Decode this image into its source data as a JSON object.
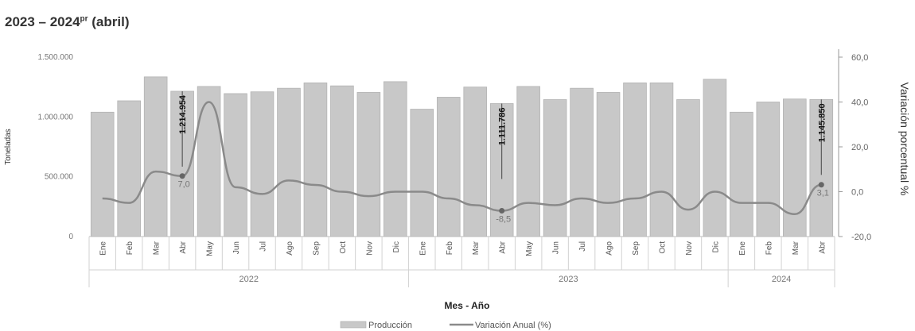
{
  "header": {
    "subtitle_years": "2023 – 2024",
    "subtitle_sup": "pr",
    "subtitle_tail": " (abril)"
  },
  "chart_data": {
    "type": "bar",
    "xlabel": "Mes - Año",
    "ylabel": "Toneladas",
    "y2label": "Variación porcentual %",
    "ylim": [
      0,
      1500000
    ],
    "y2lim": [
      -20,
      60
    ],
    "yticks": [
      "1.500.000",
      "1.000.000",
      "500.000",
      "0"
    ],
    "y2ticks": [
      "60,0",
      "40,0",
      "20,0",
      "0,0",
      "-20,0"
    ],
    "categories": [
      "Ene",
      "Feb",
      "Mar",
      "Abr",
      "May",
      "Jun",
      "Jul",
      "Ago",
      "Sep",
      "Oct",
      "Nov",
      "Dic",
      "Ene",
      "Feb",
      "Mar",
      "Abr",
      "May",
      "Jun",
      "Jul",
      "Ago",
      "Sep",
      "Oct",
      "Nov",
      "Dic",
      "Ene",
      "Feb",
      "Mar",
      "Abr"
    ],
    "years": [
      {
        "label": "2022",
        "count": 12
      },
      {
        "label": "2023",
        "count": 12
      },
      {
        "label": "2024",
        "count": 4
      }
    ],
    "series": [
      {
        "name": "Producción",
        "axis": "left",
        "color": "#c8c8c8",
        "values": [
          1040000,
          1135000,
          1335000,
          1214954,
          1255000,
          1195000,
          1210000,
          1240000,
          1285000,
          1260000,
          1205000,
          1295000,
          1065000,
          1165000,
          1250000,
          1111786,
          1255000,
          1145000,
          1240000,
          1205000,
          1285000,
          1285000,
          1145000,
          1315000,
          1040000,
          1125000,
          1150000,
          1145850
        ]
      },
      {
        "name": "Variación Anual (%)",
        "axis": "right",
        "color": "#8a8a8a",
        "values": [
          -3,
          -5,
          9,
          7,
          40,
          2,
          -1,
          5,
          3,
          0,
          -2,
          0,
          0,
          -3,
          -6,
          -8.5,
          -5,
          -6,
          -3,
          -5,
          -3,
          0,
          -8,
          0,
          -5,
          -5,
          -10,
          3.1
        ]
      }
    ],
    "bar_labels": [
      {
        "index": 3,
        "text": "1.214.954"
      },
      {
        "index": 15,
        "text": "1.111.786"
      },
      {
        "index": 27,
        "text": "1.145.850"
      }
    ],
    "line_labels": [
      {
        "index": 3,
        "text": "7,0"
      },
      {
        "index": 15,
        "text": "-8,5"
      },
      {
        "index": 27,
        "text": "3,1"
      }
    ],
    "grid": false,
    "legend_position": "bottom-center"
  }
}
